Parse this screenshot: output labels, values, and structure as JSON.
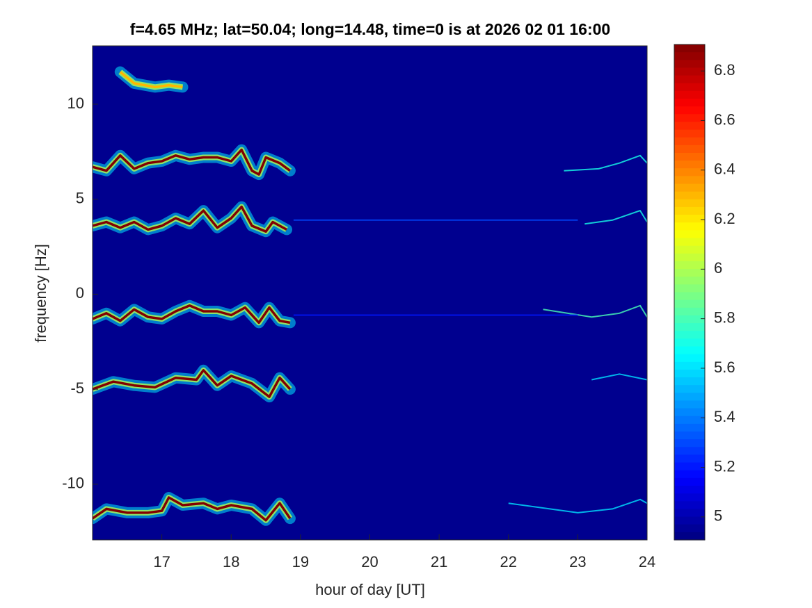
{
  "chart_data": {
    "type": "spectrogram",
    "title": "f=4.65 MHz;  lat=50.04; long=14.48, time=0 is at 2026 02 01 16:00",
    "xlabel": "hour of day [UT]",
    "ylabel": "frequency [Hz]",
    "xlim": [
      16,
      24
    ],
    "xticks": [
      17,
      18,
      19,
      20,
      21,
      22,
      23,
      24
    ],
    "ylim": [
      -12.93,
      13.07
    ],
    "yticks": [
      -10,
      -5,
      0,
      5,
      10
    ],
    "clim": [
      4.907,
      6.907
    ],
    "cticks": [
      5,
      5.2,
      5.4,
      5.6,
      5.8,
      6,
      6.2,
      6.4,
      6.6,
      6.8
    ],
    "colormap": "jet",
    "background": "#00008f",
    "series": [
      {
        "level": 6.9,
        "x": [
          16.0,
          16.2,
          16.4,
          16.6,
          16.8,
          17.0,
          17.2,
          17.4,
          17.6,
          17.8,
          18.0,
          18.15,
          18.3,
          18.4,
          18.5,
          18.7,
          18.85
        ],
        "values": [
          6.7,
          6.5,
          7.3,
          6.6,
          6.9,
          7.0,
          7.3,
          7.1,
          7.2,
          7.2,
          7.0,
          7.6,
          6.5,
          6.3,
          7.2,
          6.9,
          6.5
        ]
      },
      {
        "level": 6.9,
        "x": [
          16.0,
          16.2,
          16.4,
          16.6,
          16.8,
          17.0,
          17.2,
          17.4,
          17.6,
          17.8,
          18.0,
          18.15,
          18.3,
          18.5,
          18.6,
          18.8
        ],
        "values": [
          3.6,
          3.8,
          3.5,
          3.8,
          3.4,
          3.6,
          4.0,
          3.7,
          4.4,
          3.5,
          4.0,
          4.6,
          3.6,
          3.3,
          3.8,
          3.4
        ]
      },
      {
        "level": 6.9,
        "x": [
          16.0,
          16.2,
          16.4,
          16.6,
          16.8,
          17.0,
          17.2,
          17.4,
          17.6,
          17.8,
          18.0,
          18.2,
          18.4,
          18.55,
          18.7,
          18.85
        ],
        "values": [
          -1.3,
          -1.0,
          -1.4,
          -0.8,
          -1.2,
          -1.3,
          -0.9,
          -0.6,
          -0.9,
          -0.9,
          -1.1,
          -0.7,
          -1.5,
          -0.7,
          -1.4,
          -1.5
        ]
      },
      {
        "level": 6.9,
        "x": [
          16.0,
          16.3,
          16.6,
          16.9,
          17.2,
          17.5,
          17.6,
          17.8,
          18.0,
          18.3,
          18.55,
          18.7,
          18.85
        ],
        "values": [
          -5.0,
          -4.6,
          -4.8,
          -4.9,
          -4.4,
          -4.5,
          -4.0,
          -4.8,
          -4.3,
          -4.7,
          -5.4,
          -4.4,
          -5.0
        ]
      },
      {
        "level": 6.9,
        "x": [
          16.0,
          16.2,
          16.5,
          16.8,
          17.0,
          17.1,
          17.3,
          17.6,
          17.8,
          18.0,
          18.3,
          18.5,
          18.7,
          18.85
        ],
        "values": [
          -11.8,
          -11.3,
          -11.5,
          -11.5,
          -11.4,
          -10.7,
          -11.1,
          -11.0,
          -11.3,
          -11.1,
          -11.3,
          -11.9,
          -11.0,
          -11.8
        ]
      },
      {
        "level": 6.3,
        "x": [
          16.4,
          16.6,
          16.9,
          17.1,
          17.3
        ],
        "values": [
          11.7,
          11.1,
          10.9,
          11.0,
          10.9
        ]
      },
      {
        "level": 5.7,
        "x": [
          22.8,
          23.3,
          23.6,
          23.9,
          24.0
        ],
        "values": [
          6.5,
          6.6,
          6.9,
          7.3,
          6.9
        ]
      },
      {
        "level": 5.7,
        "x": [
          23.1,
          23.5,
          23.9,
          24.0
        ],
        "values": [
          3.7,
          3.9,
          4.4,
          3.8
        ]
      },
      {
        "level": 5.8,
        "x": [
          22.5,
          23.2,
          23.6,
          23.9,
          24.0
        ],
        "values": [
          -0.8,
          -1.2,
          -1.0,
          -0.6,
          -1.2
        ]
      },
      {
        "level": 5.6,
        "x": [
          23.2,
          23.6,
          24.0
        ],
        "values": [
          -4.5,
          -4.2,
          -4.5
        ]
      },
      {
        "level": 5.6,
        "x": [
          22.0,
          23.0,
          23.5,
          23.9,
          24.0
        ],
        "values": [
          -11.0,
          -11.5,
          -11.3,
          -10.8,
          -11.0
        ]
      },
      {
        "level": 5.3,
        "x": [
          18.9,
          23.0
        ],
        "values": [
          3.9,
          3.9
        ]
      },
      {
        "level": 5.2,
        "x": [
          18.9,
          23.0
        ],
        "values": [
          -1.1,
          -1.1
        ]
      }
    ]
  }
}
